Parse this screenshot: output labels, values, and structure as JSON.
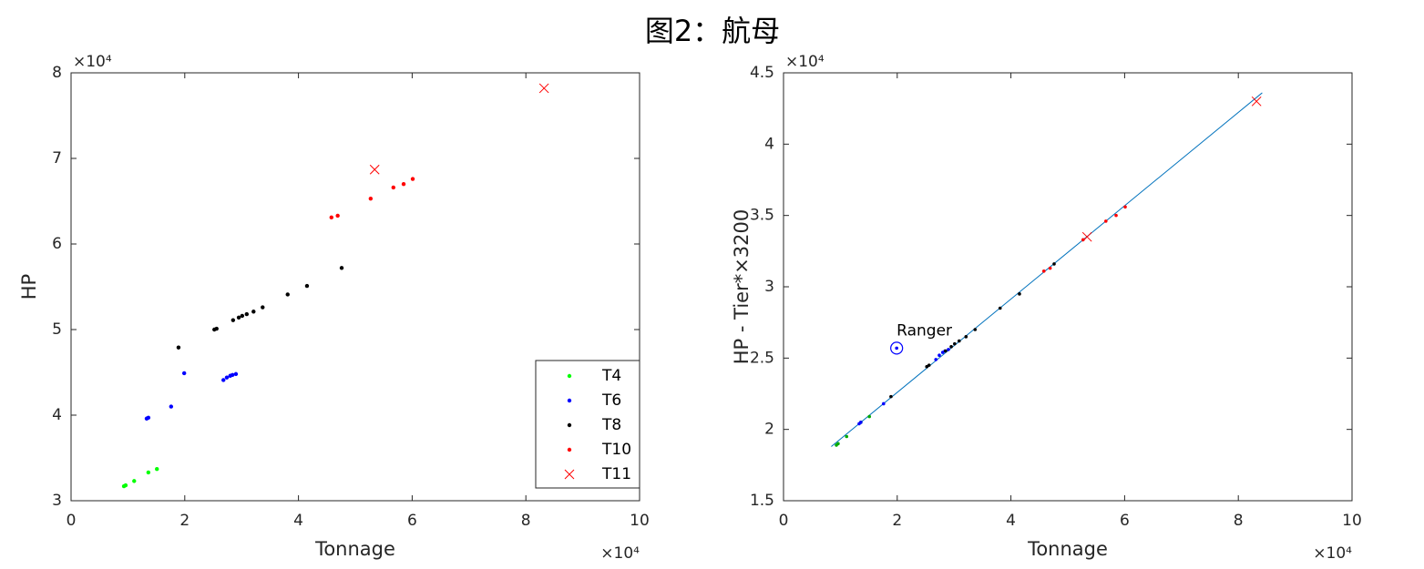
{
  "title": "图2：航母",
  "chart_data": [
    {
      "type": "scatter",
      "xlabel": "Tonnage",
      "ylabel": "HP",
      "x_exponent": "×10⁴",
      "y_exponent": "×10⁴",
      "xlim": [
        0,
        10
      ],
      "xticks": [
        0,
        2,
        4,
        6,
        8,
        10
      ],
      "ylim": [
        3,
        8
      ],
      "yticks": [
        3,
        4,
        5,
        6,
        7,
        8
      ],
      "legend": "southeast",
      "series": [
        {
          "name": "T4",
          "color": "#00ff00",
          "marker": "dot",
          "x": [
            0.93,
            0.96,
            1.11,
            1.36,
            1.51
          ],
          "values": [
            3.17,
            3.18,
            3.23,
            3.33,
            3.37
          ]
        },
        {
          "name": "T6",
          "color": "#0000ff",
          "marker": "dot",
          "x": [
            1.33,
            1.36,
            1.76,
            1.99,
            2.68,
            2.74,
            2.8,
            2.84,
            2.9
          ],
          "values": [
            3.96,
            3.97,
            4.1,
            4.49,
            4.41,
            4.44,
            4.46,
            4.47,
            4.48
          ]
        },
        {
          "name": "T8",
          "color": "#000000",
          "marker": "dot",
          "x": [
            1.89,
            2.52,
            2.56,
            2.85,
            2.95,
            3.01,
            3.09,
            3.21,
            3.37,
            3.81,
            4.15,
            4.76
          ],
          "values": [
            4.79,
            5.0,
            5.01,
            5.11,
            5.14,
            5.16,
            5.18,
            5.21,
            5.26,
            5.41,
            5.51,
            5.72
          ]
        },
        {
          "name": "T10",
          "color": "#ff0000",
          "marker": "dot",
          "x": [
            4.58,
            4.69,
            5.27,
            5.67,
            5.85,
            6.01
          ],
          "values": [
            6.31,
            6.33,
            6.53,
            6.66,
            6.7,
            6.76
          ]
        },
        {
          "name": "T11",
          "color": "#ff0000",
          "marker": "x",
          "x": [
            5.34,
            8.32
          ],
          "values": [
            6.87,
            7.82
          ]
        }
      ]
    },
    {
      "type": "scatter",
      "xlabel": "Tonnage",
      "ylabel": "HP - Tier*×3200",
      "x_exponent": "×10⁴",
      "y_exponent": "×10⁴",
      "xlim": [
        0,
        10
      ],
      "xticks": [
        0,
        2,
        4,
        6,
        8,
        10
      ],
      "ylim": [
        1.5,
        4.5
      ],
      "yticks": [
        1.5,
        2,
        2.5,
        3,
        3.5,
        4,
        4.5
      ],
      "series": [
        {
          "color": "#00aa00",
          "marker": "dot",
          "x": [
            0.93,
            0.96,
            1.11,
            1.36,
            1.51
          ],
          "values": [
            1.89,
            1.9,
            1.95,
            2.05,
            2.09
          ]
        },
        {
          "color": "#0000ff",
          "marker": "dot",
          "x": [
            1.33,
            1.36,
            1.76,
            1.99,
            2.68,
            2.74,
            2.8,
            2.84,
            2.9
          ],
          "values": [
            2.04,
            2.05,
            2.18,
            2.57,
            2.49,
            2.52,
            2.54,
            2.55,
            2.56
          ]
        },
        {
          "color": "#000000",
          "marker": "dot",
          "x": [
            1.89,
            2.52,
            2.56,
            2.85,
            2.95,
            3.01,
            3.09,
            3.21,
            3.37,
            3.81,
            4.15,
            4.76
          ],
          "values": [
            2.23,
            2.44,
            2.45,
            2.55,
            2.58,
            2.6,
            2.62,
            2.65,
            2.7,
            2.85,
            2.95,
            3.16
          ]
        },
        {
          "color": "#ff0000",
          "marker": "dot",
          "x": [
            4.58,
            4.69,
            5.27,
            5.67,
            5.85,
            6.01
          ],
          "values": [
            3.11,
            3.13,
            3.33,
            3.46,
            3.5,
            3.56
          ]
        },
        {
          "color": "#ff0000",
          "marker": "x",
          "x": [
            5.34,
            8.32
          ],
          "values": [
            3.35,
            4.3
          ]
        }
      ],
      "fit_line": {
        "color": "#0072bd",
        "x": [
          0.84,
          8.42
        ],
        "values": [
          1.88,
          4.36
        ]
      },
      "annotation": {
        "text": "Ranger",
        "x": 1.99,
        "y": 2.57,
        "color": "#0000ff"
      }
    }
  ]
}
